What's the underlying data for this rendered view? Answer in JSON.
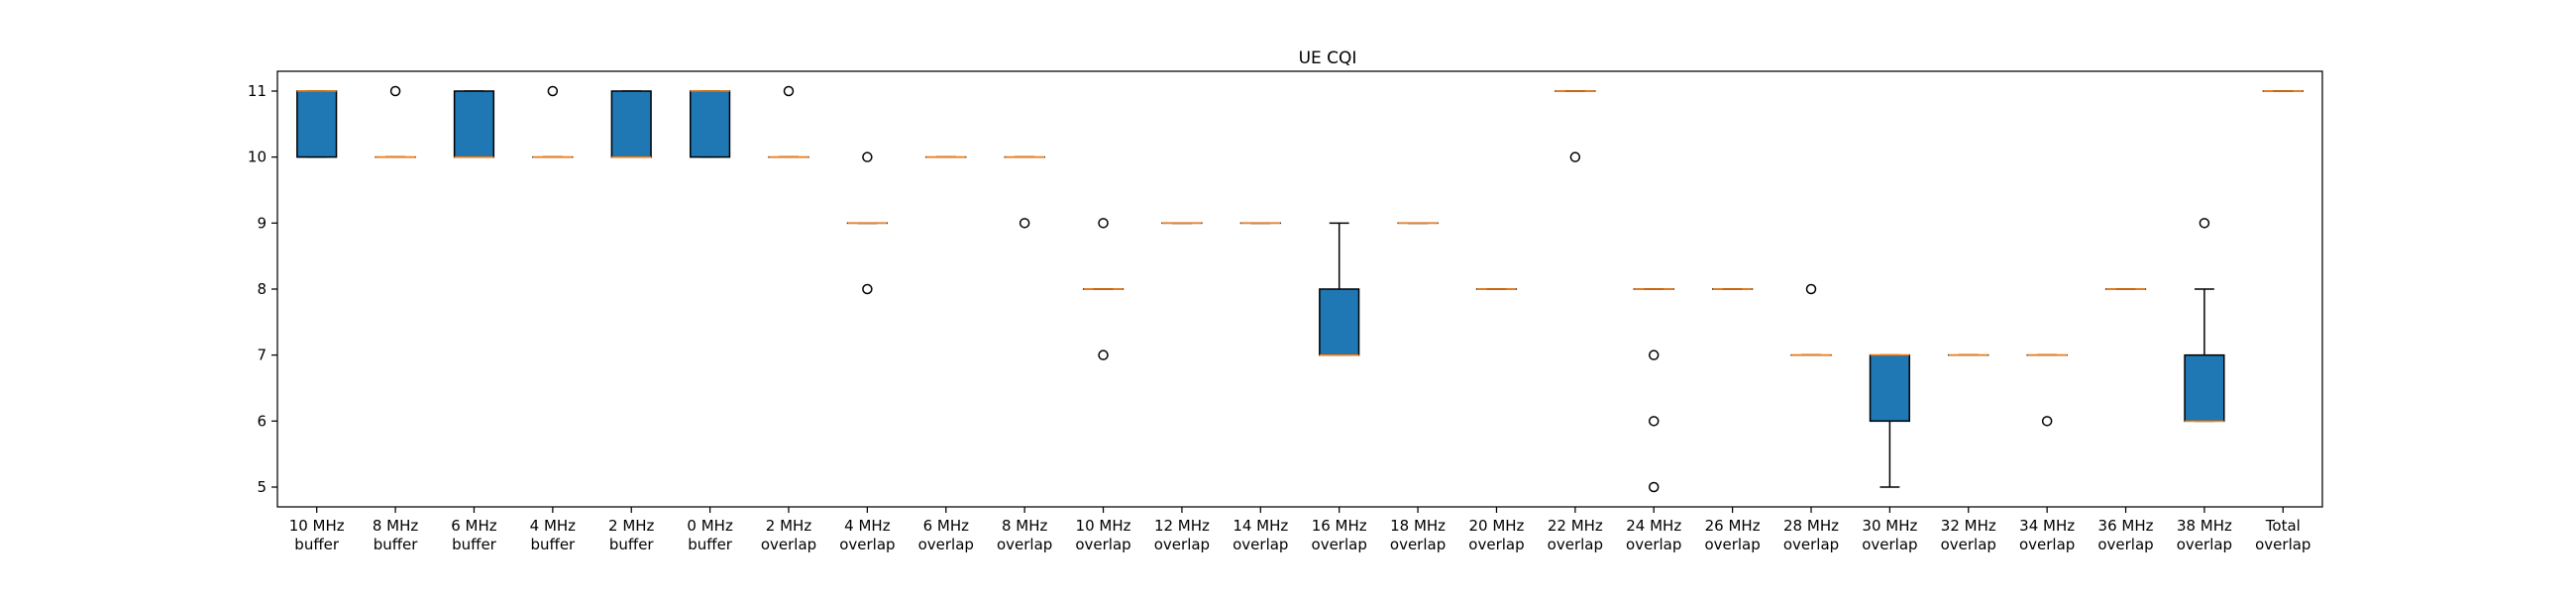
{
  "chart_data": {
    "type": "box",
    "title": "UE CQI",
    "xlabel": "",
    "ylabel": "",
    "ylim": [
      4.7,
      11.3
    ],
    "yticks": [
      5,
      6,
      7,
      8,
      9,
      10,
      11
    ],
    "grid": false,
    "colors": {
      "box_fill": "#1f77b4",
      "median": "#ff7f0e",
      "outline": "#000000"
    },
    "categories": [
      [
        "10 MHz",
        "buffer"
      ],
      [
        "8 MHz",
        "buffer"
      ],
      [
        "6 MHz",
        "buffer"
      ],
      [
        "4 MHz",
        "buffer"
      ],
      [
        "2 MHz",
        "buffer"
      ],
      [
        "0 MHz",
        "buffer"
      ],
      [
        "2 MHz",
        "overlap"
      ],
      [
        "4 MHz",
        "overlap"
      ],
      [
        "6 MHz",
        "overlap"
      ],
      [
        "8 MHz",
        "overlap"
      ],
      [
        "10 MHz",
        "overlap"
      ],
      [
        "12 MHz",
        "overlap"
      ],
      [
        "14 MHz",
        "overlap"
      ],
      [
        "16 MHz",
        "overlap"
      ],
      [
        "18 MHz",
        "overlap"
      ],
      [
        "20 MHz",
        "overlap"
      ],
      [
        "22 MHz",
        "overlap"
      ],
      [
        "24 MHz",
        "overlap"
      ],
      [
        "26 MHz",
        "overlap"
      ],
      [
        "28 MHz",
        "overlap"
      ],
      [
        "30 MHz",
        "overlap"
      ],
      [
        "32 MHz",
        "overlap"
      ],
      [
        "34 MHz",
        "overlap"
      ],
      [
        "36 MHz",
        "overlap"
      ],
      [
        "38 MHz",
        "overlap"
      ],
      [
        "Total",
        "overlap"
      ]
    ],
    "boxes": [
      {
        "q1": 10,
        "median": 11,
        "q3": 11,
        "whislo": 10,
        "whishi": 11,
        "fliers": []
      },
      {
        "q1": 10,
        "median": 10,
        "q3": 10,
        "whislo": 10,
        "whishi": 10,
        "fliers": [
          11
        ]
      },
      {
        "q1": 10,
        "median": 10,
        "q3": 11,
        "whislo": 10,
        "whishi": 11,
        "fliers": []
      },
      {
        "q1": 10,
        "median": 10,
        "q3": 10,
        "whislo": 10,
        "whishi": 10,
        "fliers": [
          11
        ]
      },
      {
        "q1": 10,
        "median": 10,
        "q3": 11,
        "whislo": 10,
        "whishi": 11,
        "fliers": []
      },
      {
        "q1": 10,
        "median": 11,
        "q3": 11,
        "whislo": 10,
        "whishi": 11,
        "fliers": []
      },
      {
        "q1": 10,
        "median": 10,
        "q3": 10,
        "whislo": 10,
        "whishi": 10,
        "fliers": [
          11
        ]
      },
      {
        "q1": 9,
        "median": 9,
        "q3": 9,
        "whislo": 9,
        "whishi": 9,
        "fliers": [
          10,
          8
        ]
      },
      {
        "q1": 10,
        "median": 10,
        "q3": 10,
        "whislo": 10,
        "whishi": 10,
        "fliers": []
      },
      {
        "q1": 10,
        "median": 10,
        "q3": 10,
        "whislo": 10,
        "whishi": 10,
        "fliers": [
          9
        ]
      },
      {
        "q1": 8,
        "median": 8,
        "q3": 8,
        "whislo": 8,
        "whishi": 8,
        "fliers": [
          9,
          7
        ]
      },
      {
        "q1": 9,
        "median": 9,
        "q3": 9,
        "whislo": 9,
        "whishi": 9,
        "fliers": []
      },
      {
        "q1": 9,
        "median": 9,
        "q3": 9,
        "whislo": 9,
        "whishi": 9,
        "fliers": []
      },
      {
        "q1": 7,
        "median": 7,
        "q3": 8,
        "whislo": 7,
        "whishi": 9,
        "fliers": []
      },
      {
        "q1": 9,
        "median": 9,
        "q3": 9,
        "whislo": 9,
        "whishi": 9,
        "fliers": []
      },
      {
        "q1": 8,
        "median": 8,
        "q3": 8,
        "whislo": 8,
        "whishi": 8,
        "fliers": []
      },
      {
        "q1": 11,
        "median": 11,
        "q3": 11,
        "whislo": 11,
        "whishi": 11,
        "fliers": [
          10
        ]
      },
      {
        "q1": 8,
        "median": 8,
        "q3": 8,
        "whislo": 8,
        "whishi": 8,
        "fliers": [
          7,
          6,
          5
        ]
      },
      {
        "q1": 8,
        "median": 8,
        "q3": 8,
        "whislo": 8,
        "whishi": 8,
        "fliers": []
      },
      {
        "q1": 7,
        "median": 7,
        "q3": 7,
        "whislo": 7,
        "whishi": 7,
        "fliers": [
          8
        ]
      },
      {
        "q1": 6,
        "median": 7,
        "q3": 7,
        "whislo": 5,
        "whishi": 7,
        "fliers": []
      },
      {
        "q1": 7,
        "median": 7,
        "q3": 7,
        "whislo": 7,
        "whishi": 7,
        "fliers": []
      },
      {
        "q1": 7,
        "median": 7,
        "q3": 7,
        "whislo": 7,
        "whishi": 7,
        "fliers": [
          6
        ]
      },
      {
        "q1": 8,
        "median": 8,
        "q3": 8,
        "whislo": 8,
        "whishi": 8,
        "fliers": []
      },
      {
        "q1": 6,
        "median": 6,
        "q3": 7,
        "whislo": 6,
        "whishi": 8,
        "fliers": [
          9
        ]
      },
      {
        "q1": 11,
        "median": 11,
        "q3": 11,
        "whislo": 11,
        "whishi": 11,
        "fliers": []
      }
    ]
  }
}
